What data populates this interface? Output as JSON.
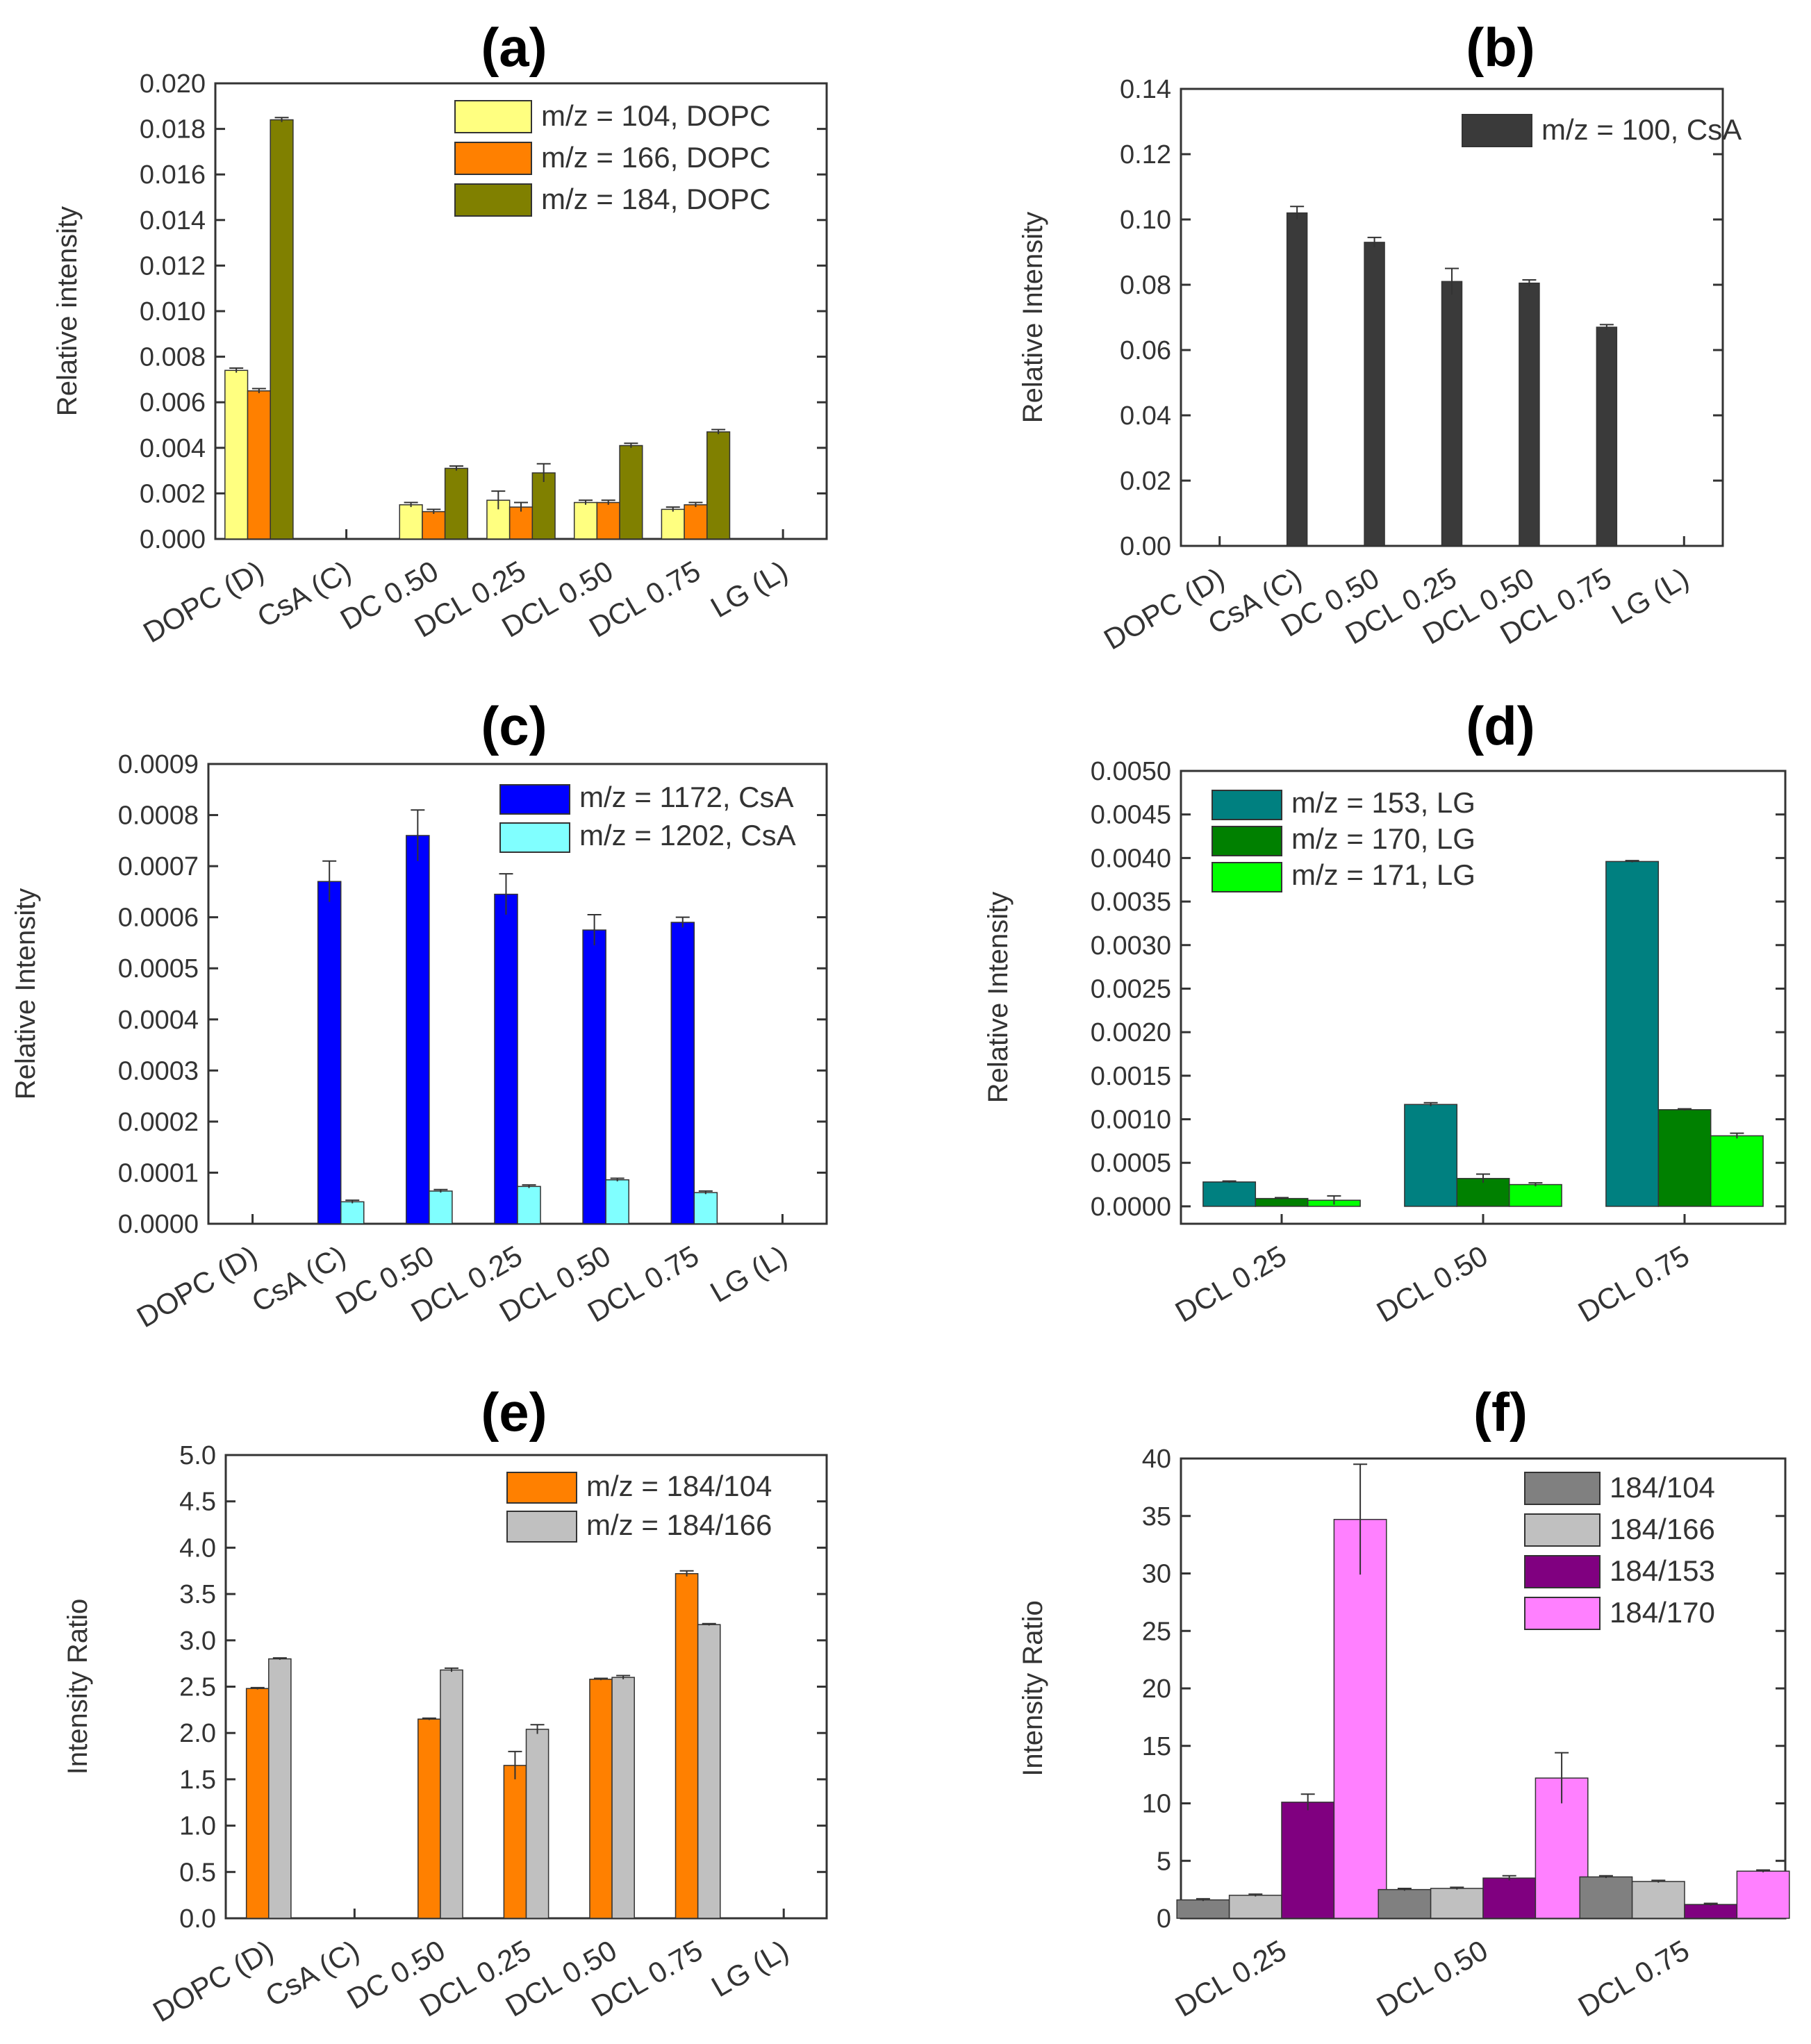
{
  "chart_data": [
    {
      "id": "a",
      "type": "bar",
      "title": "(a)",
      "ylabel": "Relative intensity",
      "xlabel": "",
      "ylim": [
        0,
        0.02
      ],
      "yticks": [
        "0.000",
        "0.002",
        "0.004",
        "0.006",
        "0.008",
        "0.010",
        "0.012",
        "0.014",
        "0.016",
        "0.018",
        "0.020"
      ],
      "categories": [
        "DOPC (D)",
        "CsA (C)",
        "DC 0.50",
        "DCL 0.25",
        "DCL 0.50",
        "DCL 0.75",
        "LG (L)"
      ],
      "legend_position": "top-right",
      "series": [
        {
          "name": "m/z = 104, DOPC",
          "color": "#ffff80",
          "values": [
            0.0074,
            null,
            0.0015,
            0.0017,
            0.0016,
            0.0013,
            null
          ],
          "errors": [
            0.0001,
            null,
            0.0001,
            0.0004,
            0.0001,
            0.0001,
            null
          ]
        },
        {
          "name": "m/z = 166, DOPC",
          "color": "#ff8000",
          "values": [
            0.0065,
            null,
            0.0012,
            0.0014,
            0.0016,
            0.0015,
            null
          ],
          "errors": [
            0.0001,
            null,
            0.0001,
            0.0002,
            0.0001,
            0.0001,
            null
          ]
        },
        {
          "name": "m/z = 184, DOPC",
          "color": "#808000",
          "values": [
            0.0184,
            null,
            0.0031,
            0.0029,
            0.0041,
            0.0047,
            null
          ],
          "errors": [
            0.0001,
            null,
            0.0001,
            0.0004,
            0.0001,
            0.0001,
            null
          ]
        }
      ]
    },
    {
      "id": "b",
      "type": "bar",
      "title": "(b)",
      "ylabel": "Relative Intensity",
      "xlabel": "",
      "ylim": [
        0,
        0.14
      ],
      "yticks": [
        "0.00",
        "0.02",
        "0.04",
        "0.06",
        "0.08",
        "0.10",
        "0.12",
        "0.14"
      ],
      "categories": [
        "DOPC (D)",
        "CsA (C)",
        "DC 0.50",
        "DCL 0.25",
        "DCL 0.50",
        "DCL 0.75",
        "LG (L)"
      ],
      "legend_position": "top-right",
      "series": [
        {
          "name": "m/z = 100, CsA",
          "color": "#3a3a3a",
          "values": [
            null,
            0.102,
            0.093,
            0.081,
            0.0805,
            0.067,
            null
          ],
          "errors": [
            null,
            0.002,
            0.0015,
            0.004,
            0.001,
            0.0008,
            null
          ]
        }
      ]
    },
    {
      "id": "c",
      "type": "bar",
      "title": "(c)",
      "ylabel": "Relative Intensity",
      "xlabel": "",
      "ylim": [
        0,
        0.0009
      ],
      "yticks": [
        "0.0000",
        "0.0001",
        "0.0002",
        "0.0003",
        "0.0004",
        "0.0005",
        "0.0006",
        "0.0007",
        "0.0008",
        "0.0009"
      ],
      "categories": [
        "DOPC (D)",
        "CsA (C)",
        "DC 0.50",
        "DCL 0.25",
        "DCL 0.50",
        "DCL 0.75",
        "LG (L)"
      ],
      "legend_position": "top-right",
      "series": [
        {
          "name": "m/z = 1172, CsA",
          "color": "#0000ff",
          "values": [
            null,
            0.00067,
            0.00076,
            0.000645,
            0.000575,
            0.00059,
            null
          ],
          "errors": [
            null,
            4e-05,
            5e-05,
            4e-05,
            3e-05,
            1e-05,
            null
          ]
        },
        {
          "name": "m/z = 1202, CsA",
          "color": "#80ffff",
          "values": [
            null,
            4.3e-05,
            6.4e-05,
            7.3e-05,
            8.6e-05,
            6.1e-05,
            null
          ],
          "errors": [
            null,
            3e-06,
            3e-06,
            3e-06,
            3e-06,
            3e-06,
            null
          ]
        }
      ]
    },
    {
      "id": "d",
      "type": "bar",
      "title": "(d)",
      "ylabel": "Relative Intensity",
      "xlabel": "",
      "ylim": [
        -0.0002,
        0.005
      ],
      "yticks": [
        "0.0000",
        "0.0005",
        "0.0010",
        "0.0015",
        "0.0020",
        "0.0025",
        "0.0030",
        "0.0035",
        "0.0040",
        "0.0045",
        "0.0050"
      ],
      "categories": [
        "DCL 0.25",
        "DCL 0.50",
        "DCL 0.75"
      ],
      "legend_position": "top-left",
      "series": [
        {
          "name": "m/z = 153, LG",
          "color": "#008080",
          "values": [
            0.00028,
            0.00117,
            0.00396
          ],
          "errors": [
            1e-05,
            2e-05,
            1e-05
          ]
        },
        {
          "name": "m/z = 170, LG",
          "color": "#008000",
          "values": [
            9e-05,
            0.00032,
            0.00111
          ],
          "errors": [
            1e-05,
            5e-05,
            1e-05
          ]
        },
        {
          "name": "m/z = 171, LG",
          "color": "#00ff00",
          "values": [
            7e-05,
            0.00025,
            0.00081
          ],
          "errors": [
            5e-05,
            2e-05,
            3e-05
          ]
        }
      ]
    },
    {
      "id": "e",
      "type": "bar",
      "title": "(e)",
      "ylabel": "Intensity Ratio",
      "xlabel": "",
      "ylim": [
        0,
        5
      ],
      "yticks": [
        "0.0",
        "0.5",
        "1.0",
        "1.5",
        "2.0",
        "2.5",
        "3.0",
        "3.5",
        "4.0",
        "4.5",
        "5.0"
      ],
      "categories": [
        "DOPC (D)",
        "CsA (C)",
        "DC 0.50",
        "DCL 0.25",
        "DCL 0.50",
        "DCL 0.75",
        "LG (L)"
      ],
      "legend_position": "top-right",
      "series": [
        {
          "name": "m/z = 184/104",
          "color": "#ff8000",
          "values": [
            2.48,
            null,
            2.15,
            1.65,
            2.58,
            3.72,
            null
          ],
          "errors": [
            0.01,
            null,
            0.01,
            0.15,
            0.01,
            0.03,
            null
          ]
        },
        {
          "name": "m/z = 184/166",
          "color": "#c0c0c0",
          "values": [
            2.8,
            null,
            2.68,
            2.04,
            2.6,
            3.17,
            null
          ],
          "errors": [
            0.01,
            null,
            0.02,
            0.05,
            0.02,
            0.01,
            null
          ]
        }
      ]
    },
    {
      "id": "f",
      "type": "bar",
      "title": "(f)",
      "ylabel": "Intensity Ratio",
      "xlabel": "",
      "ylim": [
        0,
        40
      ],
      "yticks": [
        "0",
        "5",
        "10",
        "15",
        "20",
        "25",
        "30",
        "35",
        "40"
      ],
      "categories": [
        "DCL 0.25",
        "DCL 0.50",
        "DCL 0.75"
      ],
      "legend_position": "top-right",
      "series": [
        {
          "name": "184/104",
          "color": "#808080",
          "values": [
            1.6,
            2.5,
            3.6
          ],
          "errors": [
            0.1,
            0.1,
            0.1
          ]
        },
        {
          "name": "184/166",
          "color": "#c0c0c0",
          "values": [
            2.0,
            2.6,
            3.2
          ],
          "errors": [
            0.1,
            0.1,
            0.1
          ]
        },
        {
          "name": "184/153",
          "color": "#800080",
          "values": [
            10.1,
            3.5,
            1.2
          ],
          "errors": [
            0.7,
            0.2,
            0.1
          ]
        },
        {
          "name": "184/170",
          "color": "#ff80ff",
          "values": [
            34.7,
            12.2,
            4.1
          ],
          "errors": [
            4.8,
            2.2,
            0.1
          ]
        }
      ]
    }
  ]
}
